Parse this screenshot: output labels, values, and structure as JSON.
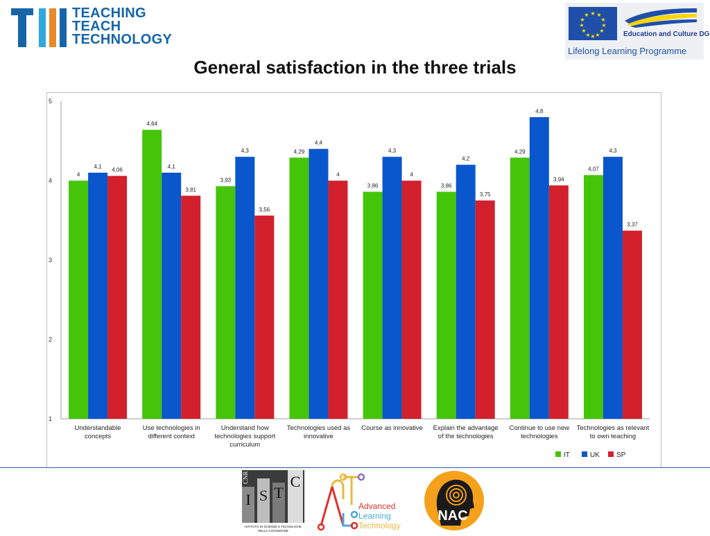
{
  "header": {
    "ttt_lines": [
      "TEACHING",
      "TEACH",
      "TECHNOLOGY"
    ],
    "eu_line1": "Education and Culture DG",
    "eu_line2": "Lifelong Learning Programme"
  },
  "page_title": "General satisfaction in the three trials",
  "colors": {
    "IT": "#44c50a",
    "UK": "#0a56cc",
    "SP": "#d2202c",
    "accent": "#2b5aa8"
  },
  "chart_data": {
    "type": "bar",
    "categories": [
      [
        "Understandable",
        "concepts"
      ],
      [
        "Use technologies in",
        "different context"
      ],
      [
        "Understand how",
        "technologies support",
        "curriculum"
      ],
      [
        "Technologies used as",
        "innovative"
      ],
      [
        "Course as innovative"
      ],
      [
        "Explain the advantage",
        "of the technologies"
      ],
      [
        "Continue to use new",
        "technologies"
      ],
      [
        "Technologies as relevant",
        "to own teaching"
      ]
    ],
    "series": [
      {
        "name": "IT",
        "values": [
          4,
          4.64,
          3.93,
          4.29,
          3.86,
          3.86,
          4.29,
          4.07
        ],
        "labels": [
          "4",
          "4,64",
          "3,93",
          "4,29",
          "3,86",
          "3,86",
          "4,29",
          "4,07"
        ]
      },
      {
        "name": "UK",
        "values": [
          4.1,
          4.1,
          4.3,
          4.4,
          4.3,
          4.2,
          4.8,
          4.3
        ],
        "labels": [
          "4,1",
          "4,1",
          "4,3",
          "4,4",
          "4,3",
          "4,2",
          "4,8",
          "4,3"
        ]
      },
      {
        "name": "SP",
        "values": [
          4.06,
          3.81,
          3.56,
          4,
          4,
          3.75,
          3.94,
          3.37
        ],
        "labels": [
          "4,06",
          "3,81",
          "3,56",
          "4",
          "4",
          "3,75",
          "3,94",
          "3,37"
        ]
      }
    ],
    "y_ticks": [
      "1",
      "2",
      "3",
      "4",
      "5"
    ],
    "ylim": [
      1,
      5
    ],
    "legend": "bottom-right",
    "grid": false
  },
  "footer_logos": {
    "cnr_text": "CNR",
    "cnr_letters": [
      "I",
      "S",
      "T",
      "C"
    ],
    "cnr_caption": [
      "ISTITUTO DI SCIENZE E TECNOLOGIE",
      "DELLA COGNIZIONE"
    ],
    "alt_lines": [
      "Advanced",
      "Learning",
      "Technology"
    ],
    "nac_text": "NAC"
  }
}
